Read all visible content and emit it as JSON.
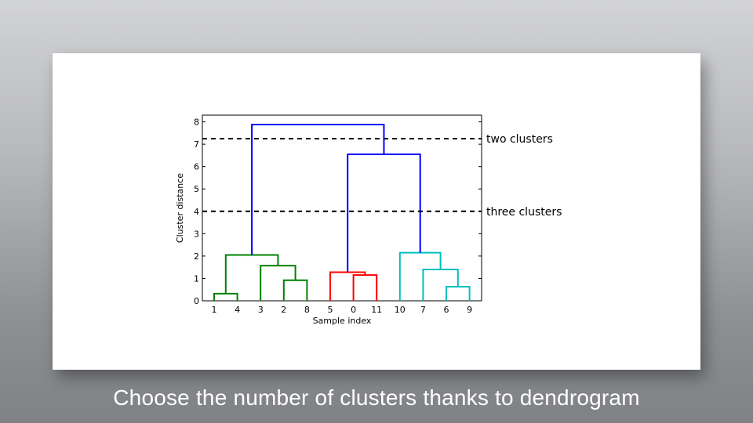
{
  "slide": {
    "caption": "Choose the number of clusters thanks to dendrogram"
  },
  "chart_data": {
    "type": "dendrogram",
    "xlabel": "Sample index",
    "ylabel": "Cluster distance",
    "ylim": [
      0,
      8.3
    ],
    "yticks": [
      0,
      1,
      2,
      3,
      4,
      5,
      6,
      7,
      8
    ],
    "leaf_order": [
      "1",
      "4",
      "3",
      "2",
      "8",
      "5",
      "0",
      "11",
      "10",
      "7",
      "6",
      "9"
    ],
    "links": [
      {
        "left": "1",
        "right": "4",
        "height": 0.32,
        "color": "#008000"
      },
      {
        "left": "2",
        "right": "8",
        "height": 0.92,
        "color": "#008000"
      },
      {
        "left": "3",
        "right": "{2,8}",
        "height": 1.57,
        "color": "#008000"
      },
      {
        "left": "{1,4}",
        "right": "{3,2,8}",
        "height": 2.05,
        "color": "#008000"
      },
      {
        "left": "0",
        "right": "11",
        "height": 1.15,
        "color": "#ff0000"
      },
      {
        "left": "5",
        "right": "{0,11}",
        "height": 1.28,
        "color": "#ff0000"
      },
      {
        "left": "6",
        "right": "9",
        "height": 0.63,
        "color": "#00bfbf"
      },
      {
        "left": "7",
        "right": "{6,9}",
        "height": 1.4,
        "color": "#00bfbf"
      },
      {
        "left": "10",
        "right": "{7,6,9}",
        "height": 2.15,
        "color": "#00bfbf"
      },
      {
        "left": "{5,0,11}",
        "right": "{10,7,6,9}",
        "height": 6.55,
        "color": "#0000ff"
      },
      {
        "left": "{1,4,3,2,8}",
        "right": "{5,0,11,10,7,6,9}",
        "height": 7.88,
        "color": "#0000ff"
      }
    ],
    "cut_lines": [
      {
        "y": 7.25,
        "label": "two clusters"
      },
      {
        "y": 4.0,
        "label": "three clusters"
      }
    ],
    "grid": false
  }
}
